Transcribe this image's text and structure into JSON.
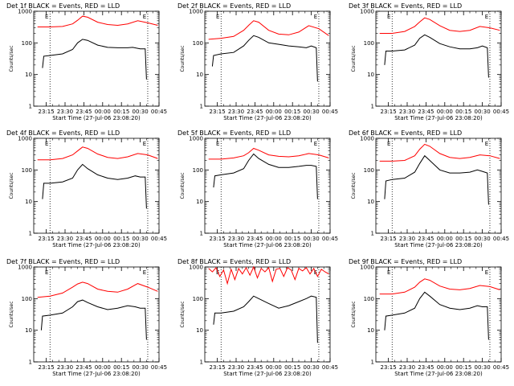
{
  "figure": {
    "ylabel": "Counts/sec",
    "xlabel": "Start Time (27-Jul-06 23:08:20)",
    "xticks": [
      "23:15",
      "23:30",
      "23:45",
      "00:00",
      "00:15",
      "00:30",
      "00:45"
    ],
    "yticks": [
      "1",
      "10",
      "100",
      "1000"
    ],
    "marker_label": "E",
    "event_color": "#000000",
    "lld_color": "#ff0000"
  },
  "chart_data": [
    {
      "type": "line",
      "title": "Det 1f BLACK = Events, RED = LLD",
      "scale": "log",
      "ylim": [
        1,
        1000
      ],
      "xlim_min": [
        -3,
        97
      ],
      "markers_min": [
        10,
        88
      ],
      "series": [
        {
          "name": "BLACK = Events",
          "x": [
            4,
            5,
            10,
            20,
            28,
            32,
            36,
            40,
            48,
            56,
            64,
            72,
            76,
            82,
            86,
            87
          ],
          "y": [
            16,
            38,
            40,
            45,
            62,
            100,
            130,
            120,
            85,
            72,
            70,
            70,
            72,
            65,
            65,
            7
          ]
        },
        {
          "name": "RED = LLD",
          "x": [
            0,
            10,
            20,
            28,
            32,
            36,
            40,
            48,
            56,
            64,
            72,
            80,
            88,
            96
          ],
          "y": [
            320,
            320,
            330,
            400,
            520,
            700,
            650,
            450,
            380,
            360,
            400,
            500,
            430,
            360
          ]
        }
      ]
    },
    {
      "type": "line",
      "title": "Det 2f BLACK = Events, RED = LLD",
      "scale": "log",
      "ylim": [
        1,
        1000
      ],
      "xlim_min": [
        -3,
        97
      ],
      "markers_min": [
        10,
        88
      ],
      "series": [
        {
          "name": "BLACK = Events",
          "x": [
            3,
            4,
            10,
            20,
            28,
            32,
            36,
            40,
            48,
            56,
            64,
            72,
            78,
            82,
            86,
            87
          ],
          "y": [
            18,
            40,
            45,
            50,
            80,
            120,
            170,
            150,
            100,
            90,
            80,
            75,
            70,
            80,
            70,
            6
          ]
        },
        {
          "name": "RED = LLD",
          "x": [
            0,
            10,
            20,
            28,
            32,
            36,
            40,
            48,
            56,
            64,
            72,
            80,
            88,
            96
          ],
          "y": [
            130,
            140,
            160,
            250,
            360,
            500,
            450,
            250,
            190,
            180,
            220,
            350,
            280,
            170
          ]
        }
      ]
    },
    {
      "type": "line",
      "title": "Det 3f BLACK = Events, RED = LLD",
      "scale": "log",
      "ylim": [
        1,
        1000
      ],
      "xlim_min": [
        -3,
        97
      ],
      "markers_min": [
        10,
        88
      ],
      "series": [
        {
          "name": "BLACK = Events",
          "x": [
            4,
            5,
            10,
            20,
            28,
            32,
            36,
            40,
            48,
            56,
            64,
            72,
            78,
            82,
            86,
            87
          ],
          "y": [
            20,
            55,
            55,
            60,
            85,
            140,
            180,
            150,
            95,
            75,
            65,
            65,
            70,
            80,
            70,
            8
          ]
        },
        {
          "name": "RED = LLD",
          "x": [
            0,
            10,
            20,
            28,
            32,
            36,
            40,
            48,
            56,
            64,
            72,
            80,
            88,
            96
          ],
          "y": [
            200,
            200,
            230,
            330,
            460,
            620,
            550,
            350,
            250,
            230,
            250,
            330,
            300,
            250
          ]
        }
      ]
    },
    {
      "type": "line",
      "title": "Det 4f BLACK = Events, RED = LLD",
      "scale": "log",
      "ylim": [
        1,
        1000
      ],
      "xlim_min": [
        -3,
        97
      ],
      "markers_min": [
        10,
        88
      ],
      "series": [
        {
          "name": "BLACK = Events",
          "x": [
            4,
            5,
            10,
            20,
            28,
            32,
            36,
            40,
            48,
            56,
            64,
            72,
            78,
            82,
            86,
            87
          ],
          "y": [
            12,
            38,
            38,
            42,
            55,
            100,
            150,
            110,
            70,
            55,
            50,
            55,
            65,
            60,
            60,
            6
          ]
        },
        {
          "name": "RED = LLD",
          "x": [
            0,
            10,
            20,
            28,
            32,
            36,
            40,
            48,
            56,
            64,
            72,
            80,
            88,
            96
          ],
          "y": [
            210,
            210,
            230,
            300,
            400,
            530,
            480,
            320,
            250,
            230,
            260,
            330,
            300,
            230
          ]
        }
      ]
    },
    {
      "type": "line",
      "title": "Det 5f BLACK = Events, RED = LLD",
      "scale": "log",
      "ylim": [
        1,
        1000
      ],
      "xlim_min": [
        -3,
        97
      ],
      "markers_min": [
        10,
        88
      ],
      "series": [
        {
          "name": "BLACK = Events",
          "x": [
            4,
            5,
            10,
            20,
            28,
            32,
            36,
            40,
            48,
            56,
            64,
            72,
            78,
            82,
            86,
            87
          ],
          "y": [
            28,
            65,
            70,
            80,
            110,
            200,
            320,
            230,
            150,
            120,
            120,
            130,
            140,
            140,
            130,
            12
          ]
        },
        {
          "name": "RED = LLD",
          "x": [
            0,
            10,
            20,
            28,
            32,
            36,
            40,
            48,
            56,
            64,
            72,
            80,
            88,
            96
          ],
          "y": [
            220,
            220,
            240,
            280,
            350,
            480,
            420,
            300,
            270,
            260,
            280,
            330,
            300,
            240
          ]
        }
      ]
    },
    {
      "type": "line",
      "title": "Det 6f BLACK = Events, RED = LLD",
      "scale": "log",
      "ylim": [
        1,
        1000
      ],
      "xlim_min": [
        -3,
        97
      ],
      "markers_min": [
        10,
        88
      ],
      "series": [
        {
          "name": "BLACK = Events",
          "x": [
            4,
            5,
            10,
            20,
            28,
            32,
            36,
            40,
            48,
            56,
            64,
            72,
            78,
            82,
            86,
            87
          ],
          "y": [
            12,
            45,
            50,
            55,
            85,
            160,
            280,
            200,
            100,
            80,
            80,
            85,
            100,
            90,
            80,
            8
          ]
        },
        {
          "name": "RED = LLD",
          "x": [
            0,
            10,
            20,
            28,
            32,
            36,
            40,
            48,
            56,
            64,
            72,
            80,
            88,
            96
          ],
          "y": [
            190,
            190,
            200,
            280,
            450,
            650,
            560,
            330,
            250,
            230,
            250,
            300,
            280,
            230
          ]
        }
      ]
    },
    {
      "type": "line",
      "title": "Det 7f BLACK = Events, RED = LLD",
      "scale": "log",
      "ylim": [
        1,
        1000
      ],
      "xlim_min": [
        -3,
        97
      ],
      "markers_min": [
        10,
        88
      ],
      "series": [
        {
          "name": "BLACK = Events",
          "x": [
            3,
            4,
            10,
            20,
            28,
            32,
            36,
            40,
            48,
            56,
            64,
            72,
            78,
            82,
            86,
            87
          ],
          "y": [
            10,
            28,
            30,
            35,
            55,
            80,
            90,
            75,
            55,
            45,
            50,
            60,
            55,
            50,
            50,
            5
          ]
        },
        {
          "name": "RED = LLD",
          "x": [
            0,
            10,
            20,
            28,
            32,
            36,
            40,
            48,
            56,
            64,
            72,
            80,
            88,
            96
          ],
          "y": [
            110,
            120,
            150,
            230,
            290,
            330,
            300,
            200,
            170,
            160,
            200,
            300,
            230,
            170
          ]
        }
      ]
    },
    {
      "type": "line",
      "title": "Det 8f BLACK = Events, RED = LLD",
      "scale": "log",
      "ylim": [
        1,
        1000
      ],
      "xlim_min": [
        -3,
        97
      ],
      "markers_min": [
        10,
        88
      ],
      "series": [
        {
          "name": "BLACK = Events",
          "x": [
            4,
            5,
            10,
            20,
            28,
            32,
            36,
            40,
            48,
            56,
            64,
            72,
            78,
            82,
            86,
            87
          ],
          "y": [
            15,
            35,
            35,
            40,
            55,
            80,
            120,
            100,
            70,
            50,
            60,
            80,
            100,
            120,
            110,
            4
          ]
        },
        {
          "name": "RED = LLD",
          "x": [
            0,
            3,
            6,
            9,
            12,
            15,
            18,
            21,
            24,
            27,
            30,
            33,
            36,
            39,
            42,
            45,
            48,
            51,
            54,
            57,
            60,
            63,
            66,
            69,
            72,
            75,
            78,
            81,
            84,
            87,
            90,
            93,
            96
          ],
          "y": [
            900,
            700,
            950,
            500,
            800,
            300,
            850,
            400,
            900,
            600,
            950,
            550,
            1000,
            450,
            900,
            700,
            950,
            350,
            850,
            900,
            500,
            950,
            800,
            400,
            900,
            750,
            950,
            600,
            900,
            500,
            850,
            700,
            600
          ]
        }
      ]
    },
    {
      "type": "line",
      "title": "Det 9f BLACK = Events, RED = LLD",
      "scale": "log",
      "ylim": [
        1,
        1000
      ],
      "xlim_min": [
        -3,
        97
      ],
      "markers_min": [
        10,
        88
      ],
      "series": [
        {
          "name": "BLACK = Events",
          "x": [
            4,
            5,
            10,
            20,
            28,
            32,
            36,
            40,
            48,
            56,
            64,
            72,
            78,
            82,
            86,
            87
          ],
          "y": [
            10,
            28,
            30,
            35,
            50,
            100,
            160,
            120,
            65,
            50,
            45,
            50,
            60,
            55,
            55,
            5
          ]
        },
        {
          "name": "RED = LLD",
          "x": [
            0,
            10,
            20,
            28,
            32,
            36,
            40,
            48,
            56,
            64,
            72,
            80,
            88,
            96
          ],
          "y": [
            140,
            140,
            160,
            230,
            330,
            420,
            380,
            250,
            200,
            190,
            210,
            260,
            240,
            190
          ]
        }
      ]
    }
  ]
}
